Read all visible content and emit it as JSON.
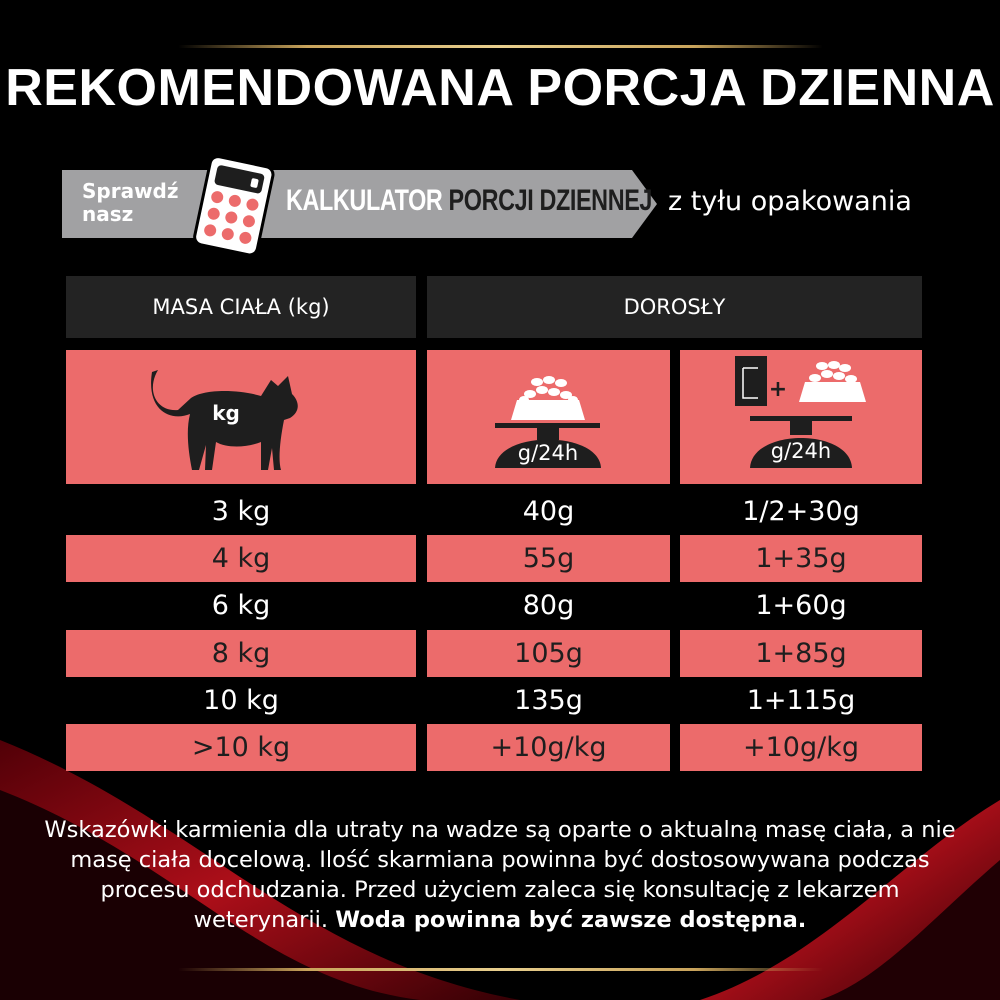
{
  "title": "REKOMENDOWANA PORCJA DZIENNA",
  "banner": {
    "check": "Sprawdź",
    "our": "nasz",
    "calc1": "KALKULATOR",
    "calc2": "PORCJI DZIENNEJ",
    "back": "z tyłu opakowania",
    "icon": "calculator-icon"
  },
  "table": {
    "headers": [
      "MASA CIAŁA (kg)",
      "DOROSŁY"
    ],
    "icons": {
      "cat_label": "kg",
      "dry_label": "g/24h",
      "mixed_label": "g/24h"
    },
    "rows": [
      [
        "3 kg",
        "40g",
        "1/2+30g"
      ],
      [
        "4 kg",
        "55g",
        "1+35g"
      ],
      [
        "6 kg",
        "80g",
        "1+60g"
      ],
      [
        "8 kg",
        "105g",
        "1+85g"
      ],
      [
        "10 kg",
        "135g",
        "1+115g"
      ],
      [
        ">10 kg",
        "+10g/kg",
        "+10g/kg"
      ]
    ]
  },
  "footnote": {
    "text": "Wskazówki karmienia dla utraty na wadze są oparte o aktualną masę ciała, a nie masę ciała docelową. Ilość skarmiana powinna być dostosowywana podczas procesu odchudzania. Przed użyciem zaleca się konsultację z lekarzem weterynarii.",
    "bold": "Woda powinna być zawsze dostępna."
  },
  "colors": {
    "salmon": "#ec6b6b",
    "banner_gray": "#a1a1a3",
    "gold": "#c9a45c",
    "background": "#000000"
  }
}
